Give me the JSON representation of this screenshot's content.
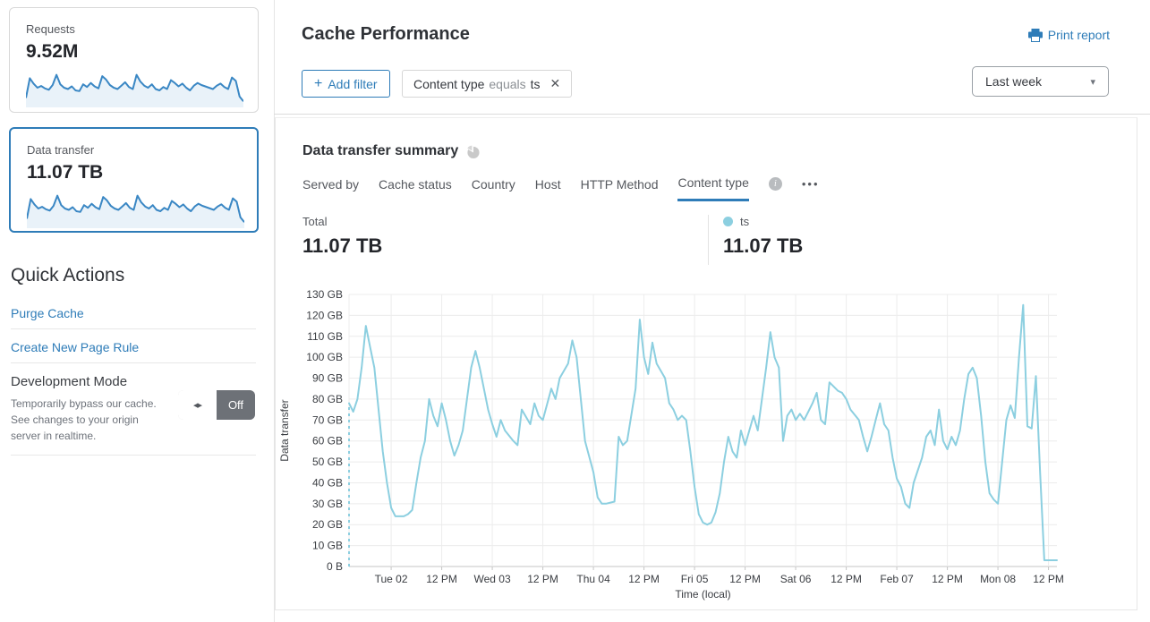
{
  "colors": {
    "accent": "#2e7cb8",
    "chart_line": "#8ccfe0",
    "sparkline": "#3a87c4",
    "sparkline_fill": "#e9f2f9",
    "toggle_off_bg": "#6d7177"
  },
  "sidebar": {
    "cards": [
      {
        "label": "Requests",
        "value": "9.52M",
        "sparkline": [
          20,
          78,
          62,
          50,
          55,
          48,
          44,
          58,
          88,
          60,
          50,
          46,
          54,
          42,
          40,
          60,
          52,
          64,
          54,
          48,
          84,
          74,
          58,
          50,
          46,
          56,
          66,
          52,
          46,
          88,
          68,
          56,
          50,
          60,
          46,
          42,
          52,
          46,
          72,
          64,
          54,
          62,
          50,
          42,
          56,
          64,
          58,
          54,
          50,
          46,
          56,
          62,
          52,
          46,
          80,
          70,
          24,
          10
        ]
      },
      {
        "label": "Data transfer",
        "value": "11.07 TB",
        "selected": true,
        "sparkline": [
          20,
          78,
          62,
          50,
          55,
          48,
          44,
          58,
          88,
          60,
          50,
          46,
          54,
          42,
          40,
          60,
          52,
          64,
          54,
          48,
          84,
          74,
          58,
          50,
          46,
          56,
          66,
          52,
          46,
          88,
          68,
          56,
          50,
          60,
          46,
          42,
          52,
          46,
          72,
          64,
          54,
          62,
          50,
          42,
          56,
          64,
          58,
          54,
          50,
          46,
          56,
          62,
          52,
          46,
          80,
          70,
          24,
          10
        ]
      }
    ],
    "quick_actions": {
      "title": "Quick Actions",
      "links": [
        {
          "label": "Purge Cache"
        },
        {
          "label": "Create New Page Rule"
        }
      ],
      "dev_mode": {
        "title": "Development Mode",
        "description": "Temporarily bypass our cache. See changes to your origin server in realtime.",
        "toggle_icon": "◂▸",
        "toggle_state": "Off"
      }
    }
  },
  "header": {
    "title": "Cache Performance",
    "print_label": "Print report"
  },
  "filters": {
    "add_icon": "+",
    "add_label": "Add filter",
    "chip": {
      "field": "Content type",
      "operator": "equals",
      "value": "ts",
      "close_icon": "✕"
    },
    "time_range": "Last week",
    "caret_icon": "▾"
  },
  "summary": {
    "title": "Data transfer summary",
    "tabs": [
      "Served by",
      "Cache status",
      "Country",
      "Host",
      "HTTP Method",
      "Content type"
    ],
    "active_tab": "Content type",
    "more_label": "•••",
    "total_label": "Total",
    "total_value": "11.07 TB",
    "legend": {
      "name": "ts",
      "value": "11.07 TB",
      "color": "#8ccfe0"
    }
  },
  "chart_data": {
    "type": "line",
    "title": "Data transfer summary",
    "xlabel": "Time (local)",
    "ylabel": "Data transfer",
    "ylim": [
      0,
      130
    ],
    "y_tick_step": 10,
    "y_tick_labels": [
      "0 B",
      "10 GB",
      "20 GB",
      "30 GB",
      "40 GB",
      "50 GB",
      "60 GB",
      "70 GB",
      "80 GB",
      "90 GB",
      "100 GB",
      "110 GB",
      "120 GB",
      "130 GB"
    ],
    "x_range_hours": [
      0,
      168
    ],
    "x_ticks": [
      {
        "hour": 10,
        "label": "Tue 02"
      },
      {
        "hour": 22,
        "label": "12 PM"
      },
      {
        "hour": 34,
        "label": "Wed 03"
      },
      {
        "hour": 46,
        "label": "12 PM"
      },
      {
        "hour": 58,
        "label": "Thu 04"
      },
      {
        "hour": 70,
        "label": "12 PM"
      },
      {
        "hour": 82,
        "label": "Fri 05"
      },
      {
        "hour": 94,
        "label": "12 PM"
      },
      {
        "hour": 106,
        "label": "Sat 06"
      },
      {
        "hour": 118,
        "label": "12 PM"
      },
      {
        "hour": 130,
        "label": "Feb 07"
      },
      {
        "hour": 142,
        "label": "12 PM"
      },
      {
        "hour": 154,
        "label": "Mon 08"
      },
      {
        "hour": 166,
        "label": "12 PM"
      }
    ],
    "grid": true,
    "legend_position": "above-right",
    "leading_dashed_from_zero": true,
    "series": [
      {
        "name": "ts",
        "color": "#8ccfe0",
        "unit": "GB",
        "points": [
          [
            0,
            78
          ],
          [
            1,
            74
          ],
          [
            2,
            80
          ],
          [
            3,
            95
          ],
          [
            4,
            115
          ],
          [
            5,
            105
          ],
          [
            6,
            95
          ],
          [
            7,
            75
          ],
          [
            8,
            55
          ],
          [
            9,
            40
          ],
          [
            10,
            28
          ],
          [
            11,
            24
          ],
          [
            13,
            24
          ],
          [
            14,
            25
          ],
          [
            15,
            27
          ],
          [
            16,
            40
          ],
          [
            17,
            52
          ],
          [
            18,
            60
          ],
          [
            19,
            80
          ],
          [
            20,
            72
          ],
          [
            21,
            67
          ],
          [
            22,
            78
          ],
          [
            23,
            70
          ],
          [
            24,
            60
          ],
          [
            25,
            53
          ],
          [
            26,
            58
          ],
          [
            27,
            65
          ],
          [
            28,
            80
          ],
          [
            29,
            95
          ],
          [
            30,
            103
          ],
          [
            31,
            95
          ],
          [
            32,
            85
          ],
          [
            33,
            75
          ],
          [
            34,
            68
          ],
          [
            35,
            62
          ],
          [
            36,
            70
          ],
          [
            37,
            65
          ],
          [
            39,
            60
          ],
          [
            40,
            58
          ],
          [
            41,
            75
          ],
          [
            43,
            68
          ],
          [
            44,
            78
          ],
          [
            45,
            72
          ],
          [
            46,
            70
          ],
          [
            48,
            85
          ],
          [
            49,
            80
          ],
          [
            50,
            90
          ],
          [
            52,
            97
          ],
          [
            53,
            108
          ],
          [
            54,
            100
          ],
          [
            55,
            80
          ],
          [
            56,
            60
          ],
          [
            58,
            45
          ],
          [
            59,
            33
          ],
          [
            60,
            30
          ],
          [
            61,
            30
          ],
          [
            63,
            31
          ],
          [
            64,
            62
          ],
          [
            65,
            58
          ],
          [
            66,
            60
          ],
          [
            68,
            85
          ],
          [
            69,
            118
          ],
          [
            70,
            100
          ],
          [
            71,
            92
          ],
          [
            72,
            107
          ],
          [
            73,
            97
          ],
          [
            75,
            90
          ],
          [
            76,
            78
          ],
          [
            77,
            75
          ],
          [
            78,
            70
          ],
          [
            79,
            72
          ],
          [
            80,
            70
          ],
          [
            81,
            55
          ],
          [
            82,
            38
          ],
          [
            83,
            25
          ],
          [
            84,
            21
          ],
          [
            85,
            20
          ],
          [
            86,
            21
          ],
          [
            87,
            26
          ],
          [
            88,
            35
          ],
          [
            89,
            50
          ],
          [
            90,
            62
          ],
          [
            91,
            55
          ],
          [
            92,
            52
          ],
          [
            93,
            65
          ],
          [
            94,
            58
          ],
          [
            95,
            65
          ],
          [
            96,
            72
          ],
          [
            97,
            65
          ],
          [
            98,
            80
          ],
          [
            99,
            95
          ],
          [
            100,
            112
          ],
          [
            101,
            100
          ],
          [
            102,
            95
          ],
          [
            103,
            60
          ],
          [
            104,
            72
          ],
          [
            105,
            75
          ],
          [
            106,
            70
          ],
          [
            107,
            73
          ],
          [
            108,
            70
          ],
          [
            109,
            74
          ],
          [
            110,
            78
          ],
          [
            111,
            83
          ],
          [
            112,
            70
          ],
          [
            113,
            68
          ],
          [
            114,
            88
          ],
          [
            116,
            84
          ],
          [
            117,
            83
          ],
          [
            118,
            80
          ],
          [
            119,
            75
          ],
          [
            121,
            70
          ],
          [
            122,
            62
          ],
          [
            123,
            55
          ],
          [
            124,
            62
          ],
          [
            125,
            70
          ],
          [
            126,
            78
          ],
          [
            127,
            68
          ],
          [
            128,
            65
          ],
          [
            129,
            52
          ],
          [
            130,
            42
          ],
          [
            131,
            38
          ],
          [
            132,
            30
          ],
          [
            133,
            28
          ],
          [
            134,
            40
          ],
          [
            136,
            52
          ],
          [
            137,
            62
          ],
          [
            138,
            65
          ],
          [
            139,
            58
          ],
          [
            140,
            75
          ],
          [
            141,
            60
          ],
          [
            142,
            56
          ],
          [
            143,
            62
          ],
          [
            144,
            58
          ],
          [
            145,
            65
          ],
          [
            146,
            80
          ],
          [
            147,
            92
          ],
          [
            148,
            95
          ],
          [
            149,
            90
          ],
          [
            150,
            72
          ],
          [
            151,
            50
          ],
          [
            152,
            35
          ],
          [
            153,
            32
          ],
          [
            154,
            30
          ],
          [
            155,
            50
          ],
          [
            156,
            70
          ],
          [
            157,
            77
          ],
          [
            158,
            71
          ],
          [
            159,
            100
          ],
          [
            160,
            125
          ],
          [
            161,
            67
          ],
          [
            162,
            66
          ],
          [
            163,
            91
          ],
          [
            164,
            45
          ],
          [
            165,
            3
          ],
          [
            166,
            3
          ],
          [
            168,
            3
          ]
        ]
      }
    ]
  }
}
